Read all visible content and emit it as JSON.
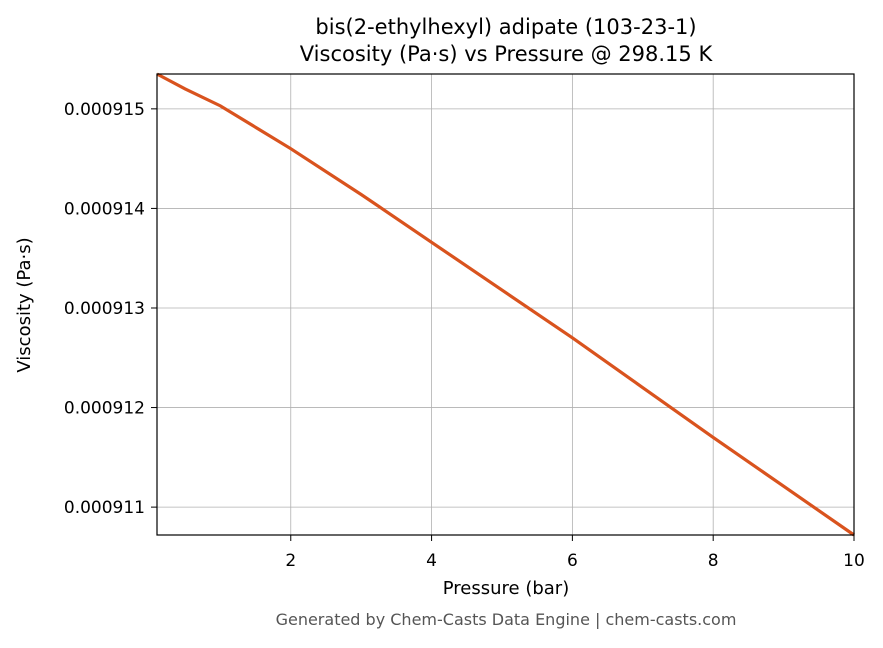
{
  "chart_data": {
    "type": "line",
    "title": "bis(2-ethylhexyl) adipate (103-23-1)",
    "subtitle": "Viscosity (Pa·s) vs Pressure @ 298.15 K",
    "x_label": "Pressure (bar)",
    "y_label": "Viscosity (Pa·s)",
    "footer": "Generated by Chem-Casts Data Engine | chem-casts.com",
    "x": [
      0.1,
      0.5,
      1,
      2,
      3,
      4,
      5,
      6,
      7,
      8,
      9,
      10
    ],
    "series": [
      {
        "name": "Viscosity",
        "color": "#d9531e",
        "values": [
          0.00091535,
          0.0009152,
          0.00091503,
          0.0009146,
          0.00091414,
          0.00091366,
          0.00091318,
          0.0009127,
          0.0009122,
          0.0009117,
          0.00091121,
          0.00091072
        ]
      }
    ],
    "xlim": [
      0.1,
      10
    ],
    "ylim": [
      0.00091072,
      0.00091535
    ],
    "xticks": [
      2,
      4,
      6,
      8,
      10
    ],
    "yticks": [
      0.000911,
      0.000912,
      0.000913,
      0.000914,
      0.000915
    ],
    "grid": true
  }
}
